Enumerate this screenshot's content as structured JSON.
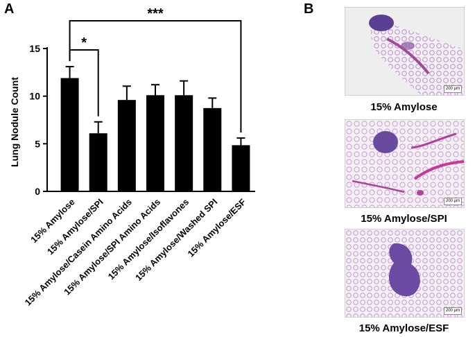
{
  "panels": {
    "a_label": "A",
    "b_label": "B"
  },
  "chart_data": {
    "type": "bar",
    "categories": [
      "15% Amylose",
      "15% Amylose/SPI",
      "15% Amylose/Casein Amino Acids",
      "15% Amylose/SPI Amino Acids",
      "15% Amylose/Isoflavones",
      "15% Amylose/Washed SPI",
      "15% Amylose/ESF"
    ],
    "values": [
      11.9,
      6.1,
      9.6,
      10.1,
      10.1,
      8.75,
      4.85
    ],
    "errors": [
      1.2,
      1.2,
      1.45,
      1.1,
      1.5,
      1.05,
      0.75
    ],
    "ylabel": "Lung Nodule Count",
    "xlabel": "",
    "ylim": [
      0,
      15
    ],
    "yticks": [
      0,
      5,
      10,
      15
    ],
    "bar_color": "#000000",
    "significance": [
      {
        "from": 0,
        "to": 1,
        "label": "*"
      },
      {
        "from": 0,
        "to": 6,
        "label": "***"
      }
    ]
  },
  "histology": {
    "scale_label": "200 µm",
    "stain_color": "#7a3f9a",
    "images": [
      {
        "caption": "15% Amylose"
      },
      {
        "caption": "15% Amylose/SPI"
      },
      {
        "caption": "15% Amylose/ESF"
      }
    ]
  }
}
